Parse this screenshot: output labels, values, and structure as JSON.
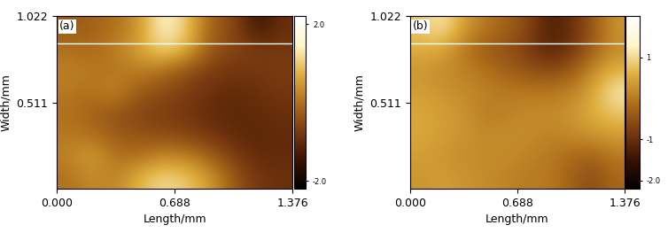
{
  "chart_data": [
    {
      "type": "heatmap",
      "annotation": "(a)",
      "x_label": "Length/mm",
      "y_label": "Width/mm",
      "xlim": [
        0,
        1.376
      ],
      "ylim": [
        0,
        1.022
      ],
      "xticks": [
        {
          "value": 0,
          "label": "0.000"
        },
        0.688,
        1.376
      ],
      "yticks": [
        0.511,
        1.022
      ],
      "cells": [
        [
          0.0,
          0.3,
          0.2,
          0.8,
          1.2,
          1.0,
          0.5,
          -0.3,
          -0.8,
          -0.9
        ],
        [
          0.2,
          0.6,
          0.0,
          0.0,
          0.3,
          0.2,
          -0.2,
          -0.7,
          -1.0,
          -1.0
        ],
        [
          0.1,
          0.0,
          -0.3,
          -0.4,
          -0.5,
          -0.6,
          -0.8,
          -1.0,
          -1.1,
          -1.0
        ],
        [
          0.0,
          -0.2,
          -0.4,
          -0.6,
          -0.7,
          -0.8,
          -1.0,
          -1.1,
          -1.0,
          -0.9
        ],
        [
          0.1,
          0.0,
          0.3,
          -0.3,
          -0.5,
          -0.7,
          -0.9,
          -1.0,
          -0.9,
          -0.8
        ],
        [
          0.2,
          0.1,
          0.0,
          0.2,
          0.0,
          -0.4,
          -0.7,
          -0.8,
          -0.8,
          -0.7
        ],
        [
          0.0,
          -0.1,
          0.2,
          0.6,
          1.2,
          0.8,
          -0.3,
          -0.6,
          -0.7,
          -0.8
        ],
        [
          -0.3,
          -0.2,
          0.0,
          0.4,
          1.6,
          1.0,
          -0.2,
          -0.5,
          -1.5,
          -0.9
        ]
      ],
      "color_range": [
        -2.2,
        2.2
      ],
      "color_ticks": [
        {
          "value": -2,
          "label": "-2.0"
        },
        {
          "value": 2,
          "label": "2.0"
        }
      ],
      "profile_line_y": 0.86
    },
    {
      "type": "heatmap",
      "annotation": "(b)",
      "x_label": "Length/mm",
      "y_label": "Width/mm",
      "xlim": [
        0,
        1.376
      ],
      "ylim": [
        0,
        1.022
      ],
      "xticks": [
        {
          "value": 0,
          "label": "0.000"
        },
        0.688,
        1.376
      ],
      "yticks": [
        0.511,
        1.022
      ],
      "cells": [
        [
          0.3,
          0.4,
          0.3,
          0.2,
          0.1,
          0.0,
          0.0,
          -0.3,
          -0.6,
          -0.2
        ],
        [
          0.4,
          0.3,
          0.2,
          0.2,
          0.2,
          0.1,
          0.0,
          -0.2,
          -0.3,
          0.0
        ],
        [
          0.5,
          0.4,
          0.3,
          0.2,
          0.2,
          0.2,
          0.1,
          0.2,
          0.3,
          0.4
        ],
        [
          0.5,
          0.4,
          0.3,
          0.0,
          0.1,
          0.2,
          0.2,
          0.3,
          0.6,
          0.8
        ],
        [
          0.4,
          0.3,
          0.2,
          0.1,
          0.0,
          0.0,
          0.0,
          0.1,
          0.5,
          1.2
        ],
        [
          0.3,
          0.2,
          0.1,
          -0.1,
          -0.3,
          -0.5,
          -0.6,
          -0.4,
          0.2,
          0.6
        ],
        [
          0.6,
          0.5,
          0.0,
          -0.4,
          -0.5,
          -0.8,
          -1.2,
          -0.9,
          -0.3,
          0.2
        ],
        [
          0.8,
          1.2,
          0.4,
          0.0,
          -0.3,
          -0.6,
          -1.3,
          -1.0,
          -0.4,
          0.3
        ]
      ],
      "color_range": [
        -2.2,
        2.0
      ],
      "color_ticks": [
        {
          "value": -2,
          "label": "-2.0"
        },
        {
          "value": -1,
          "label": "-1"
        },
        {
          "value": 1,
          "label": "1"
        }
      ],
      "profile_line_y": 0.86
    }
  ]
}
